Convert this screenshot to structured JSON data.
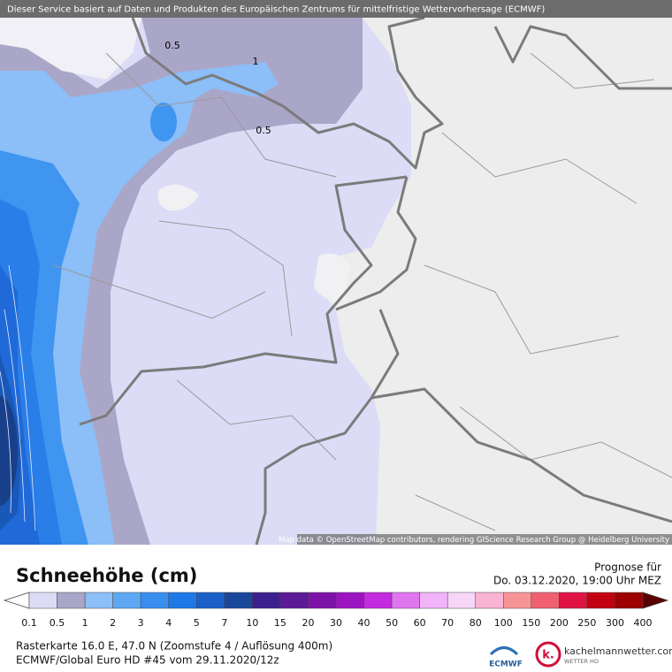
{
  "header": {
    "attribution": "Dieser Service basiert auf Daten und Produkten des Europäischen Zentrums für mittelfristige Wettervorhersage (ECMWF)"
  },
  "map": {
    "contour_labels": [
      0.5,
      1,
      0.5
    ],
    "credit": "Map data © OpenStreetMap contributors, rendering GIScience Research Group @ Heidelberg University"
  },
  "legend": {
    "title": "Schneehöhe (cm)",
    "forecast_label": "Prognose für",
    "forecast_time": "Do. 03.12.2020, 19:00 Uhr MEZ",
    "levels": [
      0.1,
      0.5,
      1,
      2,
      3,
      4,
      5,
      7,
      10,
      15,
      20,
      30,
      40,
      50,
      60,
      70,
      80,
      100,
      150,
      200,
      250,
      300,
      400
    ],
    "under_color": "#ffffff",
    "colors": [
      "#dcdcf7",
      "#aaa6c8",
      "#8cbef7",
      "#5ea7f2",
      "#3a8ef0",
      "#1f78e8",
      "#1b60c8",
      "#1a479a",
      "#3b1f8e",
      "#5c1a96",
      "#7d12a8",
      "#9c14c2",
      "#c42ae0",
      "#e075f0",
      "#f1b4f8",
      "#f8d6f8",
      "#f8b4d2",
      "#f89496",
      "#f06070",
      "#e01444",
      "#c2000f",
      "#9c0000"
    ],
    "over_color": "#5a0000"
  },
  "footer": {
    "info_line1": "Rasterkarte 16.0 E, 47.0 N (Zoomstufe 4 / Auflösung 400m)",
    "info_line2": "ECMWF/Global Euro HD #45 vom  29.11.2020/12z",
    "ecmwf_logo": "ECMWF",
    "k_logo": "k.",
    "site": "kachelmannwetter.com",
    "site_sub": "WETTER HD"
  }
}
